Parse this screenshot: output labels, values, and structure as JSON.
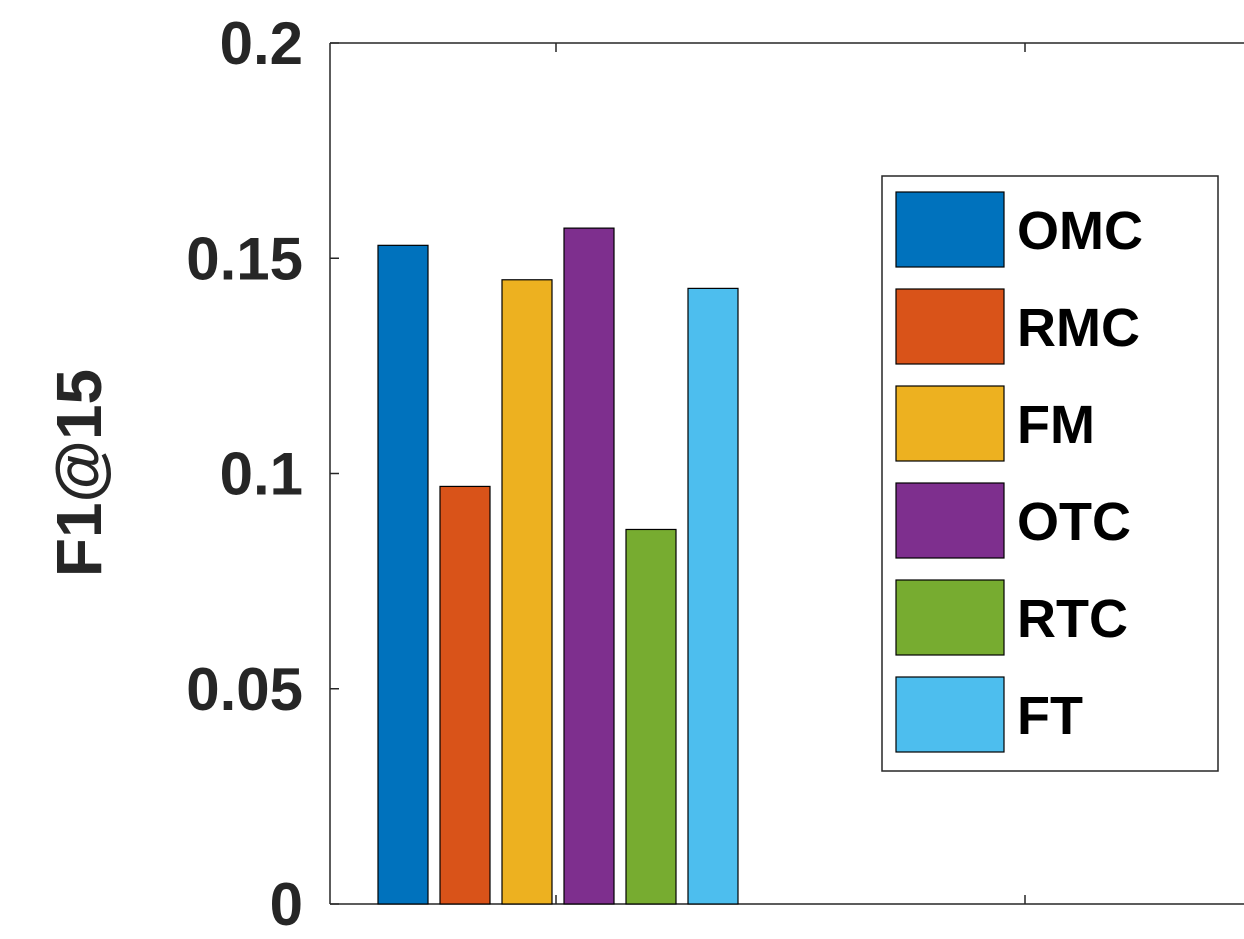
{
  "chart_data": {
    "type": "bar",
    "categories": [
      "OMC",
      "RMC",
      "FM",
      "OTC",
      "RTC",
      "FT"
    ],
    "values": [
      0.153,
      0.097,
      0.145,
      0.157,
      0.087,
      0.143
    ],
    "colors": [
      "#0072BD",
      "#D95319",
      "#EDB120",
      "#7E2F8E",
      "#77AC30",
      "#4DBEEE"
    ],
    "title": "",
    "xlabel": "",
    "ylabel": "F1@15",
    "ylim": [
      0,
      0.2
    ],
    "yticks": [
      0,
      0.05,
      0.1,
      0.15,
      0.2
    ],
    "ytick_labels": [
      "0",
      "0.05",
      "0.1",
      "0.15",
      "0.2"
    ],
    "legend": {
      "entries": [
        "OMC",
        "RMC",
        "FM",
        "OTC",
        "RTC",
        "FT"
      ],
      "placement": "right"
    },
    "grid": false
  }
}
